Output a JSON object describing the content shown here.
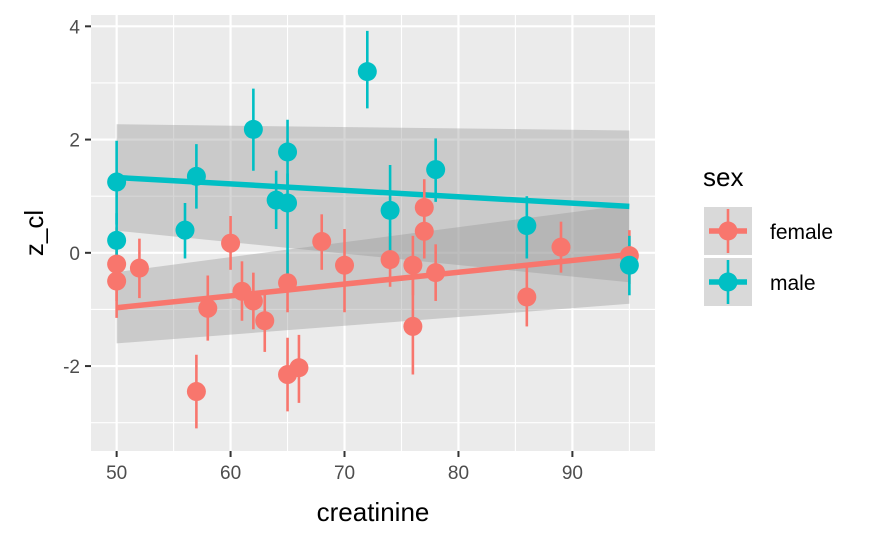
{
  "chart_data": {
    "type": "scatter",
    "title": "",
    "xlabel": "creatinine",
    "ylabel": "z_cl",
    "xlim": [
      47.75,
      97.25
    ],
    "ylim": [
      -3.5,
      4.2
    ],
    "xticks": [
      50,
      60,
      70,
      80,
      90
    ],
    "yticks": [
      -2,
      0,
      2,
      4
    ],
    "xtick_labels": [
      "50",
      "60",
      "70",
      "80",
      "90"
    ],
    "ytick_labels": [
      "-2",
      "0",
      "2",
      "4"
    ],
    "grid": true,
    "legend": {
      "title": "sex",
      "position": "right",
      "entries": [
        "female",
        "male"
      ]
    },
    "series": [
      {
        "name": "female",
        "color": "#F8766D",
        "points": [
          {
            "x": 50,
            "y": -0.2,
            "lo": -0.85,
            "hi": 0.45
          },
          {
            "x": 50,
            "y": -0.5,
            "lo": -1.15,
            "hi": 0.15
          },
          {
            "x": 52,
            "y": -0.27,
            "lo": -0.8,
            "hi": 0.25
          },
          {
            "x": 57,
            "y": -2.45,
            "lo": -3.1,
            "hi": -1.8
          },
          {
            "x": 58,
            "y": -0.98,
            "lo": -1.55,
            "hi": -0.4
          },
          {
            "x": 60,
            "y": 0.17,
            "lo": -0.3,
            "hi": 0.65
          },
          {
            "x": 61,
            "y": -0.68,
            "lo": -1.2,
            "hi": -0.15
          },
          {
            "x": 62,
            "y": -0.85,
            "lo": -1.35,
            "hi": -0.35
          },
          {
            "x": 63,
            "y": -1.2,
            "lo": -1.75,
            "hi": -0.7
          },
          {
            "x": 65,
            "y": -0.53,
            "lo": -1.05,
            "hi": 0.0
          },
          {
            "x": 65,
            "y": -2.15,
            "lo": -2.8,
            "hi": -1.5
          },
          {
            "x": 66,
            "y": -2.03,
            "lo": -2.65,
            "hi": -1.45
          },
          {
            "x": 68,
            "y": 0.2,
            "lo": -0.3,
            "hi": 0.68
          },
          {
            "x": 70,
            "y": -0.22,
            "lo": -1.05,
            "hi": 0.42
          },
          {
            "x": 74,
            "y": -0.12,
            "lo": -0.6,
            "hi": 0.35
          },
          {
            "x": 76,
            "y": -0.22,
            "lo": -0.75,
            "hi": 0.3
          },
          {
            "x": 76,
            "y": -1.3,
            "lo": -2.15,
            "hi": -0.4
          },
          {
            "x": 77,
            "y": 0.8,
            "lo": 0.3,
            "hi": 1.3
          },
          {
            "x": 77,
            "y": 0.38,
            "lo": -0.1,
            "hi": 0.85
          },
          {
            "x": 78,
            "y": -0.35,
            "lo": -0.85,
            "hi": 0.15
          },
          {
            "x": 86,
            "y": -0.78,
            "lo": -1.3,
            "hi": -0.25
          },
          {
            "x": 89,
            "y": 0.1,
            "lo": -0.35,
            "hi": 0.55
          },
          {
            "x": 95,
            "y": -0.05,
            "lo": -0.55,
            "hi": 0.4
          }
        ],
        "fit": {
          "x0": 50,
          "y0": -0.97,
          "x1": 95,
          "y1": -0.03
        },
        "band": {
          "lower0": -1.6,
          "upper0": -0.34,
          "lower1": -0.9,
          "upper1": 0.85
        }
      },
      {
        "name": "male",
        "color": "#00BFC4",
        "points": [
          {
            "x": 50,
            "y": 1.25,
            "lo": 0.5,
            "hi": 1.98
          },
          {
            "x": 50,
            "y": 0.22,
            "lo": -0.3,
            "hi": 0.7
          },
          {
            "x": 56,
            "y": 0.4,
            "lo": -0.1,
            "hi": 0.88
          },
          {
            "x": 57,
            "y": 1.35,
            "lo": 0.78,
            "hi": 1.92
          },
          {
            "x": 62,
            "y": 2.18,
            "lo": 1.45,
            "hi": 2.9
          },
          {
            "x": 64,
            "y": 0.93,
            "lo": 0.42,
            "hi": 1.45
          },
          {
            "x": 65,
            "y": 1.78,
            "lo": 1.2,
            "hi": 2.35
          },
          {
            "x": 65,
            "y": 0.88,
            "lo": -0.6,
            "hi": 1.4
          },
          {
            "x": 72,
            "y": 3.2,
            "lo": 2.55,
            "hi": 3.92
          },
          {
            "x": 74,
            "y": 0.75,
            "lo": -0.1,
            "hi": 1.55
          },
          {
            "x": 78,
            "y": 1.47,
            "lo": 0.9,
            "hi": 2.02
          },
          {
            "x": 86,
            "y": 0.48,
            "lo": -0.1,
            "hi": 1.0
          },
          {
            "x": 95,
            "y": -0.22,
            "lo": -0.75,
            "hi": 0.3
          }
        ],
        "fit": {
          "x0": 50,
          "y0": 1.33,
          "x1": 95,
          "y1": 0.82
        },
        "band": {
          "lower0": 0.39,
          "upper0": 2.27,
          "lower1": -0.52,
          "upper1": 2.16
        }
      }
    ]
  }
}
